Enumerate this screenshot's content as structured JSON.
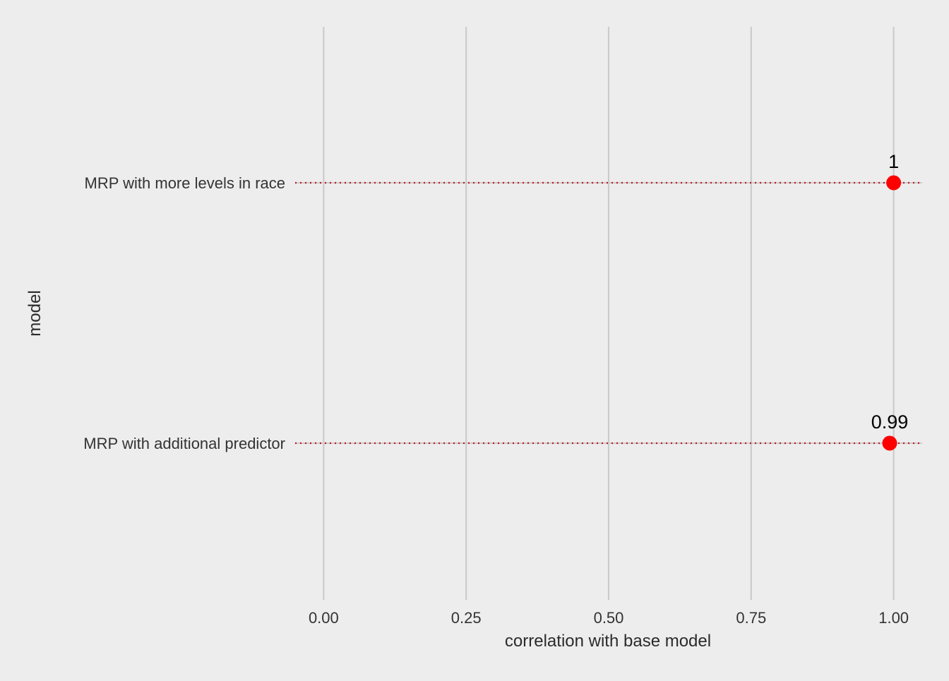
{
  "colors": {
    "background": "#ededed",
    "gridline": "#cbcbcb",
    "point": "#ff0000",
    "segment": "#c0182a",
    "text": "#333333"
  },
  "chart_data": {
    "type": "scatter",
    "title": "",
    "xlabel": "correlation with base model",
    "ylabel": "model",
    "xlim": [
      -0.05,
      1.05
    ],
    "x_ticks": [
      0,
      0.25,
      0.5,
      0.75,
      1
    ],
    "x_tick_labels": [
      "0.00",
      "0.25",
      "0.50",
      "0.75",
      "1.00"
    ],
    "categories": [
      "MRP with additional predictor",
      "MRP with more levels in race"
    ],
    "values": [
      0.993,
      1.0
    ],
    "data_labels": [
      "0.99",
      "1"
    ],
    "grid": {
      "vertical_major": true,
      "horizontal": false
    },
    "reference_lines": "dotted horizontal line across each category",
    "legend": "none"
  }
}
